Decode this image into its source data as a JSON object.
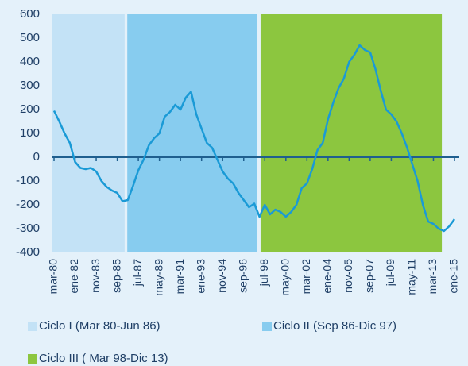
{
  "chart_data": {
    "type": "line",
    "categories": [
      "mar-80",
      null,
      null,
      null,
      "ene-82",
      null,
      null,
      null,
      "nov-83",
      null,
      null,
      null,
      "sep-85",
      null,
      null,
      null,
      "jul-87",
      null,
      null,
      null,
      "may-89",
      null,
      null,
      null,
      "mar-91",
      null,
      null,
      null,
      "ene-93",
      null,
      null,
      null,
      "nov-94",
      null,
      null,
      null,
      "sep-96",
      null,
      null,
      null,
      "jul-98",
      null,
      null,
      null,
      "may-00",
      null,
      null,
      null,
      "mar-02",
      null,
      null,
      null,
      "ene-04",
      null,
      null,
      null,
      "nov-05",
      null,
      null,
      null,
      "sep-07",
      null,
      null,
      null,
      "jul-09",
      null,
      null,
      null,
      "may-11",
      null,
      null,
      null,
      "mar-13",
      null,
      null,
      null,
      "ene-15"
    ],
    "series": [
      {
        "color": "#1a9ad6",
        "values": [
          195,
          150,
          100,
          60,
          -20,
          -45,
          -50,
          -45,
          -60,
          -100,
          -125,
          -140,
          -150,
          -185,
          -180,
          -120,
          -55,
          -10,
          50,
          80,
          100,
          170,
          190,
          220,
          200,
          250,
          275,
          180,
          120,
          60,
          40,
          -10,
          -60,
          -90,
          -110,
          -150,
          -180,
          -210,
          -195,
          -250,
          -200,
          -240,
          -220,
          -230,
          -250,
          -230,
          -200,
          -130,
          -110,
          -50,
          30,
          60,
          160,
          230,
          290,
          330,
          400,
          430,
          470,
          450,
          440,
          370,
          280,
          200,
          180,
          150,
          100,
          40,
          -30,
          -100,
          -200,
          -270,
          -280,
          -300,
          -310,
          -290,
          -260
        ]
      }
    ],
    "bands": [
      {
        "name": "Ciclo I (Mar 80-Jun 86)",
        "color": "#c3e2f6",
        "from": -0.45,
        "to": 13.4
      },
      {
        "name": "Ciclo II (Sep 86-Dic 97)",
        "color": "#87ccef",
        "from": 13.9,
        "to": 38.6
      },
      {
        "name": "Ciclo III ( Mar 98-Dic 13)",
        "color": "#8cc63f",
        "from": 39.2,
        "to": 73.6
      }
    ],
    "ylim": [
      -400,
      600
    ],
    "yticks": [
      -400,
      -300,
      -200,
      -100,
      0,
      100,
      200,
      300,
      400,
      500,
      600
    ]
  }
}
